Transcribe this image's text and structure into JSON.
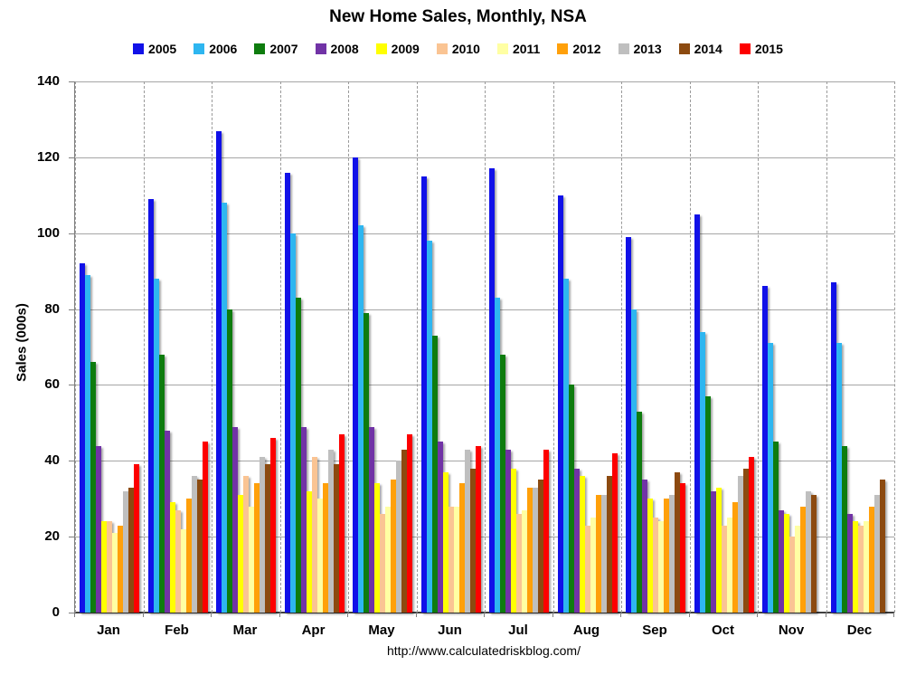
{
  "title": "New Home Sales, Monthly, NSA",
  "footer_url": "http://www.calculatedriskblog.com/",
  "chart_data": {
    "type": "bar",
    "title": "New Home Sales, Monthly, NSA",
    "xlabel": "",
    "ylabel": "Sales (000s)",
    "ylim": [
      0,
      140
    ],
    "yticks": [
      0,
      20,
      40,
      60,
      80,
      100,
      120,
      140
    ],
    "grid": true,
    "legend_position": "top",
    "categories": [
      "Jan",
      "Feb",
      "Mar",
      "Apr",
      "May",
      "Jun",
      "Jul",
      "Aug",
      "Sep",
      "Oct",
      "Nov",
      "Dec"
    ],
    "series": [
      {
        "name": "2005",
        "color": "#1111e8",
        "values": [
          92,
          109,
          127,
          116,
          120,
          115,
          117,
          110,
          99,
          105,
          86,
          87
        ]
      },
      {
        "name": "2006",
        "color": "#2eb6f0",
        "values": [
          89,
          88,
          108,
          100,
          102,
          98,
          83,
          88,
          80,
          74,
          71,
          71
        ]
      },
      {
        "name": "2007",
        "color": "#0e7c0e",
        "values": [
          66,
          68,
          80,
          83,
          79,
          73,
          68,
          60,
          53,
          57,
          45,
          44
        ]
      },
      {
        "name": "2008",
        "color": "#7133a6",
        "values": [
          44,
          48,
          49,
          49,
          49,
          45,
          43,
          38,
          35,
          32,
          27,
          26
        ]
      },
      {
        "name": "2009",
        "color": "#ffff00",
        "values": [
          24,
          29,
          31,
          32,
          34,
          37,
          38,
          36,
          30,
          33,
          26,
          24
        ]
      },
      {
        "name": "2010",
        "color": "#fac493",
        "values": [
          24,
          27,
          36,
          41,
          26,
          28,
          26,
          23,
          25,
          23,
          20,
          23
        ]
      },
      {
        "name": "2011",
        "color": "#ffffa3",
        "values": [
          21,
          22,
          28,
          30,
          28,
          28,
          27,
          25,
          24,
          25,
          23,
          24
        ]
      },
      {
        "name": "2012",
        "color": "#ffa00a",
        "values": [
          23,
          30,
          34,
          34,
          35,
          34,
          33,
          31,
          30,
          29,
          28,
          28
        ]
      },
      {
        "name": "2013",
        "color": "#bfbfbf",
        "values": [
          32,
          36,
          41,
          43,
          40,
          43,
          33,
          31,
          31,
          36,
          32,
          31
        ]
      },
      {
        "name": "2014",
        "color": "#8c4a10",
        "values": [
          33,
          35,
          39,
          39,
          43,
          38,
          35,
          36,
          37,
          38,
          31,
          35
        ]
      },
      {
        "name": "2015",
        "color": "#fd0000",
        "values": [
          39,
          45,
          46,
          47,
          47,
          44,
          43,
          42,
          34,
          41,
          null,
          null
        ]
      }
    ]
  }
}
